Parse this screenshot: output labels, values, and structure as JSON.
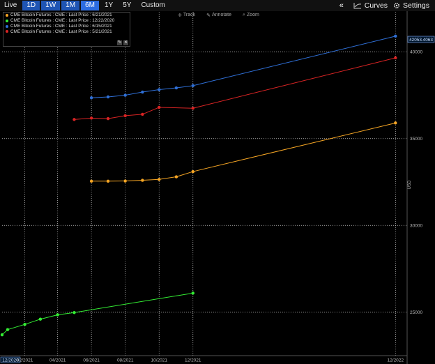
{
  "toolbar": {
    "live_label": "Live",
    "ranges": [
      "1D",
      "1W",
      "1M",
      "6M",
      "1Y",
      "5Y"
    ],
    "active_range": "6M",
    "custom_label": "Custom",
    "collapse_label": "«",
    "curves_label": "Curves",
    "settings_label": "Settings"
  },
  "chart_tools": {
    "track_label": "Track",
    "annotate_label": "Annotate",
    "zoom_label": "Zoom"
  },
  "legend": {
    "edit_label": "✎",
    "close_label": "✕"
  },
  "last_value_label": "42053.4063",
  "colors": {
    "grid": "#1e2a2a",
    "axis_text": "#bbbbbb",
    "label_box_border": "#8ab4ff"
  },
  "chart_data": {
    "type": "line",
    "ylabel": "USD",
    "ylim": [
      22500,
      42300
    ],
    "yticks": [
      25000,
      30000,
      35000,
      40000
    ],
    "xlim": [
      "2020-12-22",
      "2022-12-22"
    ],
    "xticks": [
      {
        "date": "2020-12-22",
        "label": "12/2020"
      },
      {
        "date": "2021-02-01",
        "label": "02/2021"
      },
      {
        "date": "2021-04-01",
        "label": "04/2021"
      },
      {
        "date": "2021-06-01",
        "label": "06/2021"
      },
      {
        "date": "2021-08-01",
        "label": "08/2021"
      },
      {
        "date": "2021-10-01",
        "label": "10/2021"
      },
      {
        "date": "2021-12-01",
        "label": "12/2021"
      },
      {
        "date": "2022-12-01",
        "label": "12/2022"
      }
    ],
    "series": [
      {
        "name": "CME Bitcoin Futures : CME : Last Price : 6/21/2021",
        "color": "#f5a524",
        "points": [
          [
            "2021-06-01",
            32550
          ],
          [
            "2021-07-01",
            32550
          ],
          [
            "2021-08-01",
            32560
          ],
          [
            "2021-09-01",
            32600
          ],
          [
            "2021-10-01",
            32650
          ],
          [
            "2021-11-01",
            32800
          ],
          [
            "2021-12-01",
            33100
          ],
          [
            "2022-12-01",
            35900
          ]
        ]
      },
      {
        "name": "CME Bitcoin Futures : CME : Last Price : 12/22/2020",
        "color": "#33ee33",
        "points": [
          [
            "2020-12-22",
            23700
          ],
          [
            "2021-01-01",
            24000
          ],
          [
            "2021-02-01",
            24300
          ],
          [
            "2021-03-01",
            24600
          ],
          [
            "2021-04-01",
            24850
          ],
          [
            "2021-05-01",
            24980
          ],
          [
            "2021-12-01",
            26100
          ]
        ]
      },
      {
        "name": "CME Bitcoin Futures : CME : Last Price : 6/15/2021",
        "color": "#2f6fd6",
        "points": [
          [
            "2021-06-01",
            37350
          ],
          [
            "2021-07-01",
            37400
          ],
          [
            "2021-08-01",
            37500
          ],
          [
            "2021-09-01",
            37680
          ],
          [
            "2021-10-01",
            37820
          ],
          [
            "2021-11-01",
            37920
          ],
          [
            "2021-12-01",
            38050
          ],
          [
            "2022-12-01",
            40900
          ]
        ]
      },
      {
        "name": "CME Bitcoin Futures : CME : Last Price : 5/21/2021",
        "color": "#d92424",
        "points": [
          [
            "2021-05-01",
            36100
          ],
          [
            "2021-06-01",
            36180
          ],
          [
            "2021-07-01",
            36150
          ],
          [
            "2021-08-01",
            36320
          ],
          [
            "2021-09-01",
            36400
          ],
          [
            "2021-10-01",
            36800
          ],
          [
            "2021-12-01",
            36750
          ],
          [
            "2022-12-01",
            39650
          ]
        ]
      }
    ]
  }
}
